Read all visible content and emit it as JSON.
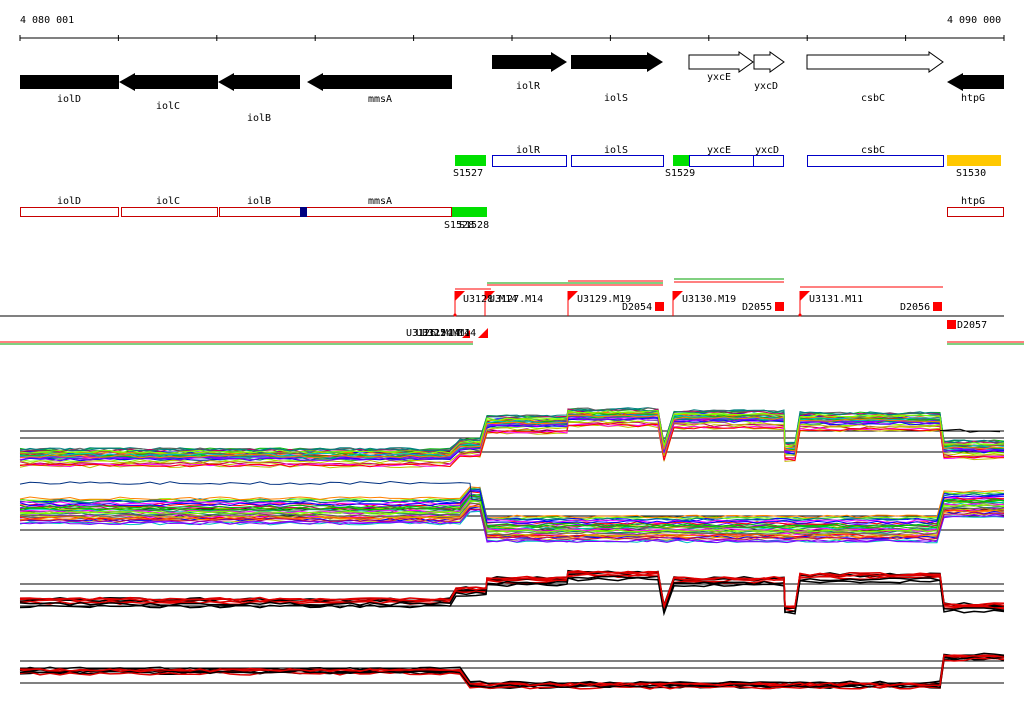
{
  "ruler": {
    "start_label": "4 080 001",
    "end_label": "4 090 000",
    "colors": {
      "axis": "#000000"
    }
  },
  "genes": [
    {
      "name": "iolD",
      "strand": "-"
    },
    {
      "name": "iolC",
      "strand": "-"
    },
    {
      "name": "iolB",
      "strand": "-"
    },
    {
      "name": "mmsA",
      "strand": "-"
    },
    {
      "name": "iolR",
      "strand": "+"
    },
    {
      "name": "iolS",
      "strand": "+"
    },
    {
      "name": "yxcE",
      "strand": "+"
    },
    {
      "name": "yxcD",
      "strand": "+"
    },
    {
      "name": "csbC",
      "strand": "+"
    },
    {
      "name": "htpG",
      "strand": "-"
    }
  ],
  "plus_track": {
    "segments": [
      {
        "label": "S1527",
        "type": "sRNA",
        "color": "#00e000"
      },
      {
        "label": "iolR",
        "type": "transcript",
        "color": "#0000c8"
      },
      {
        "label": "iolS",
        "type": "transcript",
        "color": "#0000c8"
      },
      {
        "label": "S1529",
        "type": "sRNA",
        "color": "#00e000"
      },
      {
        "label": "yxcE",
        "type": "transcript",
        "color": "#0000c8"
      },
      {
        "label": "yxcD",
        "type": "transcript",
        "color": "#0000c8"
      },
      {
        "label": "csbC",
        "type": "transcript",
        "color": "#0000c8"
      },
      {
        "label": "S1530",
        "type": "sRNA",
        "color": "#ffc800"
      }
    ]
  },
  "minus_track": {
    "segments": [
      {
        "label": "iolD",
        "type": "transcript",
        "color": "#c80000"
      },
      {
        "label": "iolC",
        "type": "transcript",
        "color": "#c80000"
      },
      {
        "label": "iolB",
        "type": "transcript",
        "color": "#c80000"
      },
      {
        "label": "mmsA",
        "type": "transcript",
        "color": "#c80000"
      },
      {
        "label": "S1528",
        "type": "sRNA",
        "color": "#00e000"
      },
      {
        "label": "htpG",
        "type": "transcript",
        "color": "#c80000"
      }
    ],
    "overlap_label": "S1528",
    "marker_color": "#000080"
  },
  "upshifts": {
    "labels": [
      "U3127.M14",
      "U3129.M19",
      "U3130.M19",
      "U3131.M11"
    ],
    "overlap_label": "U3128.M14",
    "color": "#ff0000"
  },
  "downshifts": {
    "labels": [
      "D2054",
      "D2055",
      "D2056",
      "D2057"
    ],
    "color": "#ff0000"
  },
  "minus_upshifts": {
    "label": "U3126.M14",
    "overlap_labels": [
      "U3125.M14",
      "U3124.M14"
    ]
  },
  "profiles": {
    "panels": [
      "plus-strand-conditions",
      "minus-strand-conditions",
      "plus-strand-summary",
      "minus-strand-summary"
    ],
    "colors": [
      "#ff00ff",
      "#00c000",
      "#0000ff",
      "#ff0000",
      "#00c0c0",
      "#c0c000",
      "#8000ff",
      "#ff8000",
      "#008080",
      "#80ff00",
      "#c00060",
      "#606060"
    ],
    "summary_colors": [
      "#000000",
      "#e00000"
    ]
  }
}
